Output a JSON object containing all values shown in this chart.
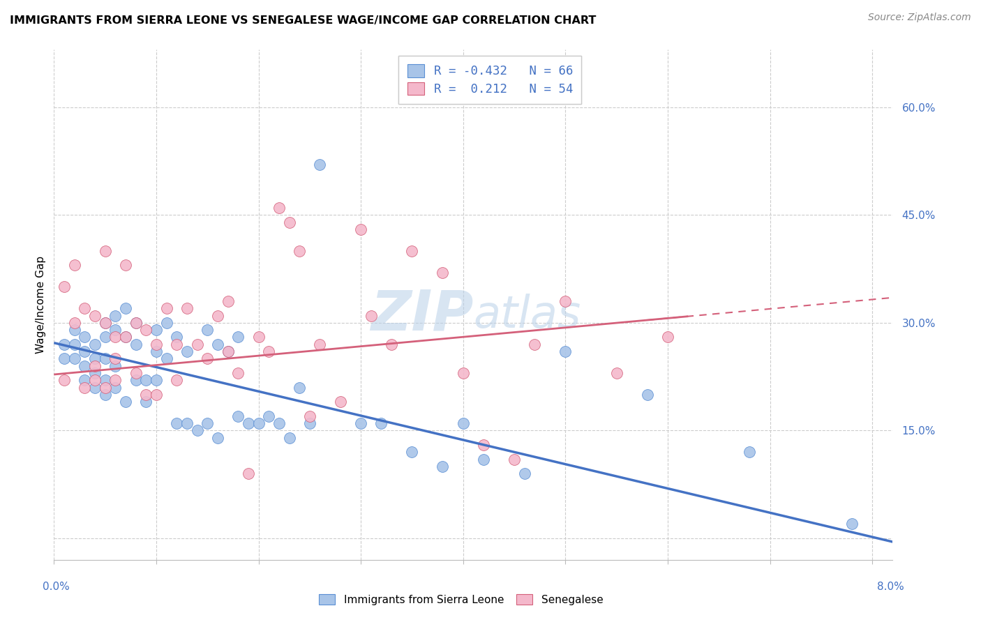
{
  "title": "IMMIGRANTS FROM SIERRA LEONE VS SENEGALESE WAGE/INCOME GAP CORRELATION CHART",
  "source": "Source: ZipAtlas.com",
  "ylabel": "Wage/Income Gap",
  "right_ytick_vals": [
    0.0,
    0.15,
    0.3,
    0.45,
    0.6
  ],
  "right_ytick_labels": [
    "",
    "15.0%",
    "30.0%",
    "45.0%",
    "60.0%"
  ],
  "legend_line1": "R = -0.432   N = 66",
  "legend_line2": "R =  0.212   N = 54",
  "sierra_leone_fill": "#a8c4e8",
  "sierra_leone_edge": "#5b8fd4",
  "senegalese_fill": "#f4b8cb",
  "senegalese_edge": "#d4607a",
  "blue_line_color": "#4472c4",
  "pink_line_color": "#d4607a",
  "watermark_color": "#b8d0e8",
  "grid_color": "#cccccc",
  "bg_color": "#ffffff",
  "axis_label_color": "#4472c4",
  "xlim": [
    0.0,
    0.082
  ],
  "ylim": [
    -0.03,
    0.68
  ],
  "sierra_leone_x": [
    0.001,
    0.001,
    0.002,
    0.002,
    0.002,
    0.003,
    0.003,
    0.003,
    0.003,
    0.004,
    0.004,
    0.004,
    0.004,
    0.005,
    0.005,
    0.005,
    0.005,
    0.005,
    0.006,
    0.006,
    0.006,
    0.006,
    0.007,
    0.007,
    0.007,
    0.008,
    0.008,
    0.008,
    0.009,
    0.009,
    0.01,
    0.01,
    0.01,
    0.011,
    0.011,
    0.012,
    0.012,
    0.013,
    0.013,
    0.014,
    0.015,
    0.015,
    0.016,
    0.016,
    0.017,
    0.018,
    0.018,
    0.019,
    0.02,
    0.021,
    0.022,
    0.023,
    0.024,
    0.025,
    0.026,
    0.03,
    0.032,
    0.035,
    0.038,
    0.04,
    0.042,
    0.046,
    0.05,
    0.058,
    0.068,
    0.078
  ],
  "sierra_leone_y": [
    0.27,
    0.25,
    0.29,
    0.27,
    0.25,
    0.28,
    0.26,
    0.24,
    0.22,
    0.27,
    0.25,
    0.23,
    0.21,
    0.3,
    0.28,
    0.25,
    0.22,
    0.2,
    0.31,
    0.29,
    0.24,
    0.21,
    0.32,
    0.28,
    0.19,
    0.3,
    0.27,
    0.22,
    0.22,
    0.19,
    0.29,
    0.26,
    0.22,
    0.3,
    0.25,
    0.28,
    0.16,
    0.26,
    0.16,
    0.15,
    0.29,
    0.16,
    0.27,
    0.14,
    0.26,
    0.28,
    0.17,
    0.16,
    0.16,
    0.17,
    0.16,
    0.14,
    0.21,
    0.16,
    0.52,
    0.16,
    0.16,
    0.12,
    0.1,
    0.16,
    0.11,
    0.09,
    0.26,
    0.2,
    0.12,
    0.02
  ],
  "senegalese_x": [
    0.001,
    0.001,
    0.002,
    0.002,
    0.003,
    0.003,
    0.004,
    0.004,
    0.004,
    0.005,
    0.005,
    0.005,
    0.006,
    0.006,
    0.006,
    0.007,
    0.007,
    0.008,
    0.008,
    0.009,
    0.009,
    0.01,
    0.01,
    0.011,
    0.012,
    0.012,
    0.013,
    0.014,
    0.015,
    0.016,
    0.017,
    0.017,
    0.018,
    0.019,
    0.02,
    0.021,
    0.022,
    0.023,
    0.024,
    0.025,
    0.026,
    0.028,
    0.03,
    0.031,
    0.033,
    0.035,
    0.038,
    0.04,
    0.042,
    0.045,
    0.047,
    0.05,
    0.055,
    0.06
  ],
  "senegalese_y": [
    0.35,
    0.22,
    0.38,
    0.3,
    0.32,
    0.21,
    0.31,
    0.24,
    0.22,
    0.4,
    0.3,
    0.21,
    0.28,
    0.25,
    0.22,
    0.38,
    0.28,
    0.3,
    0.23,
    0.29,
    0.2,
    0.27,
    0.2,
    0.32,
    0.27,
    0.22,
    0.32,
    0.27,
    0.25,
    0.31,
    0.33,
    0.26,
    0.23,
    0.09,
    0.28,
    0.26,
    0.46,
    0.44,
    0.4,
    0.17,
    0.27,
    0.19,
    0.43,
    0.31,
    0.27,
    0.4,
    0.37,
    0.23,
    0.13,
    0.11,
    0.27,
    0.33,
    0.23,
    0.28
  ],
  "sl_trend_x": [
    0.0,
    0.082
  ],
  "sl_trend_y": [
    0.272,
    -0.005
  ],
  "sen_trend_x": [
    0.0,
    0.082
  ],
  "sen_trend_y": [
    0.228,
    0.335
  ]
}
